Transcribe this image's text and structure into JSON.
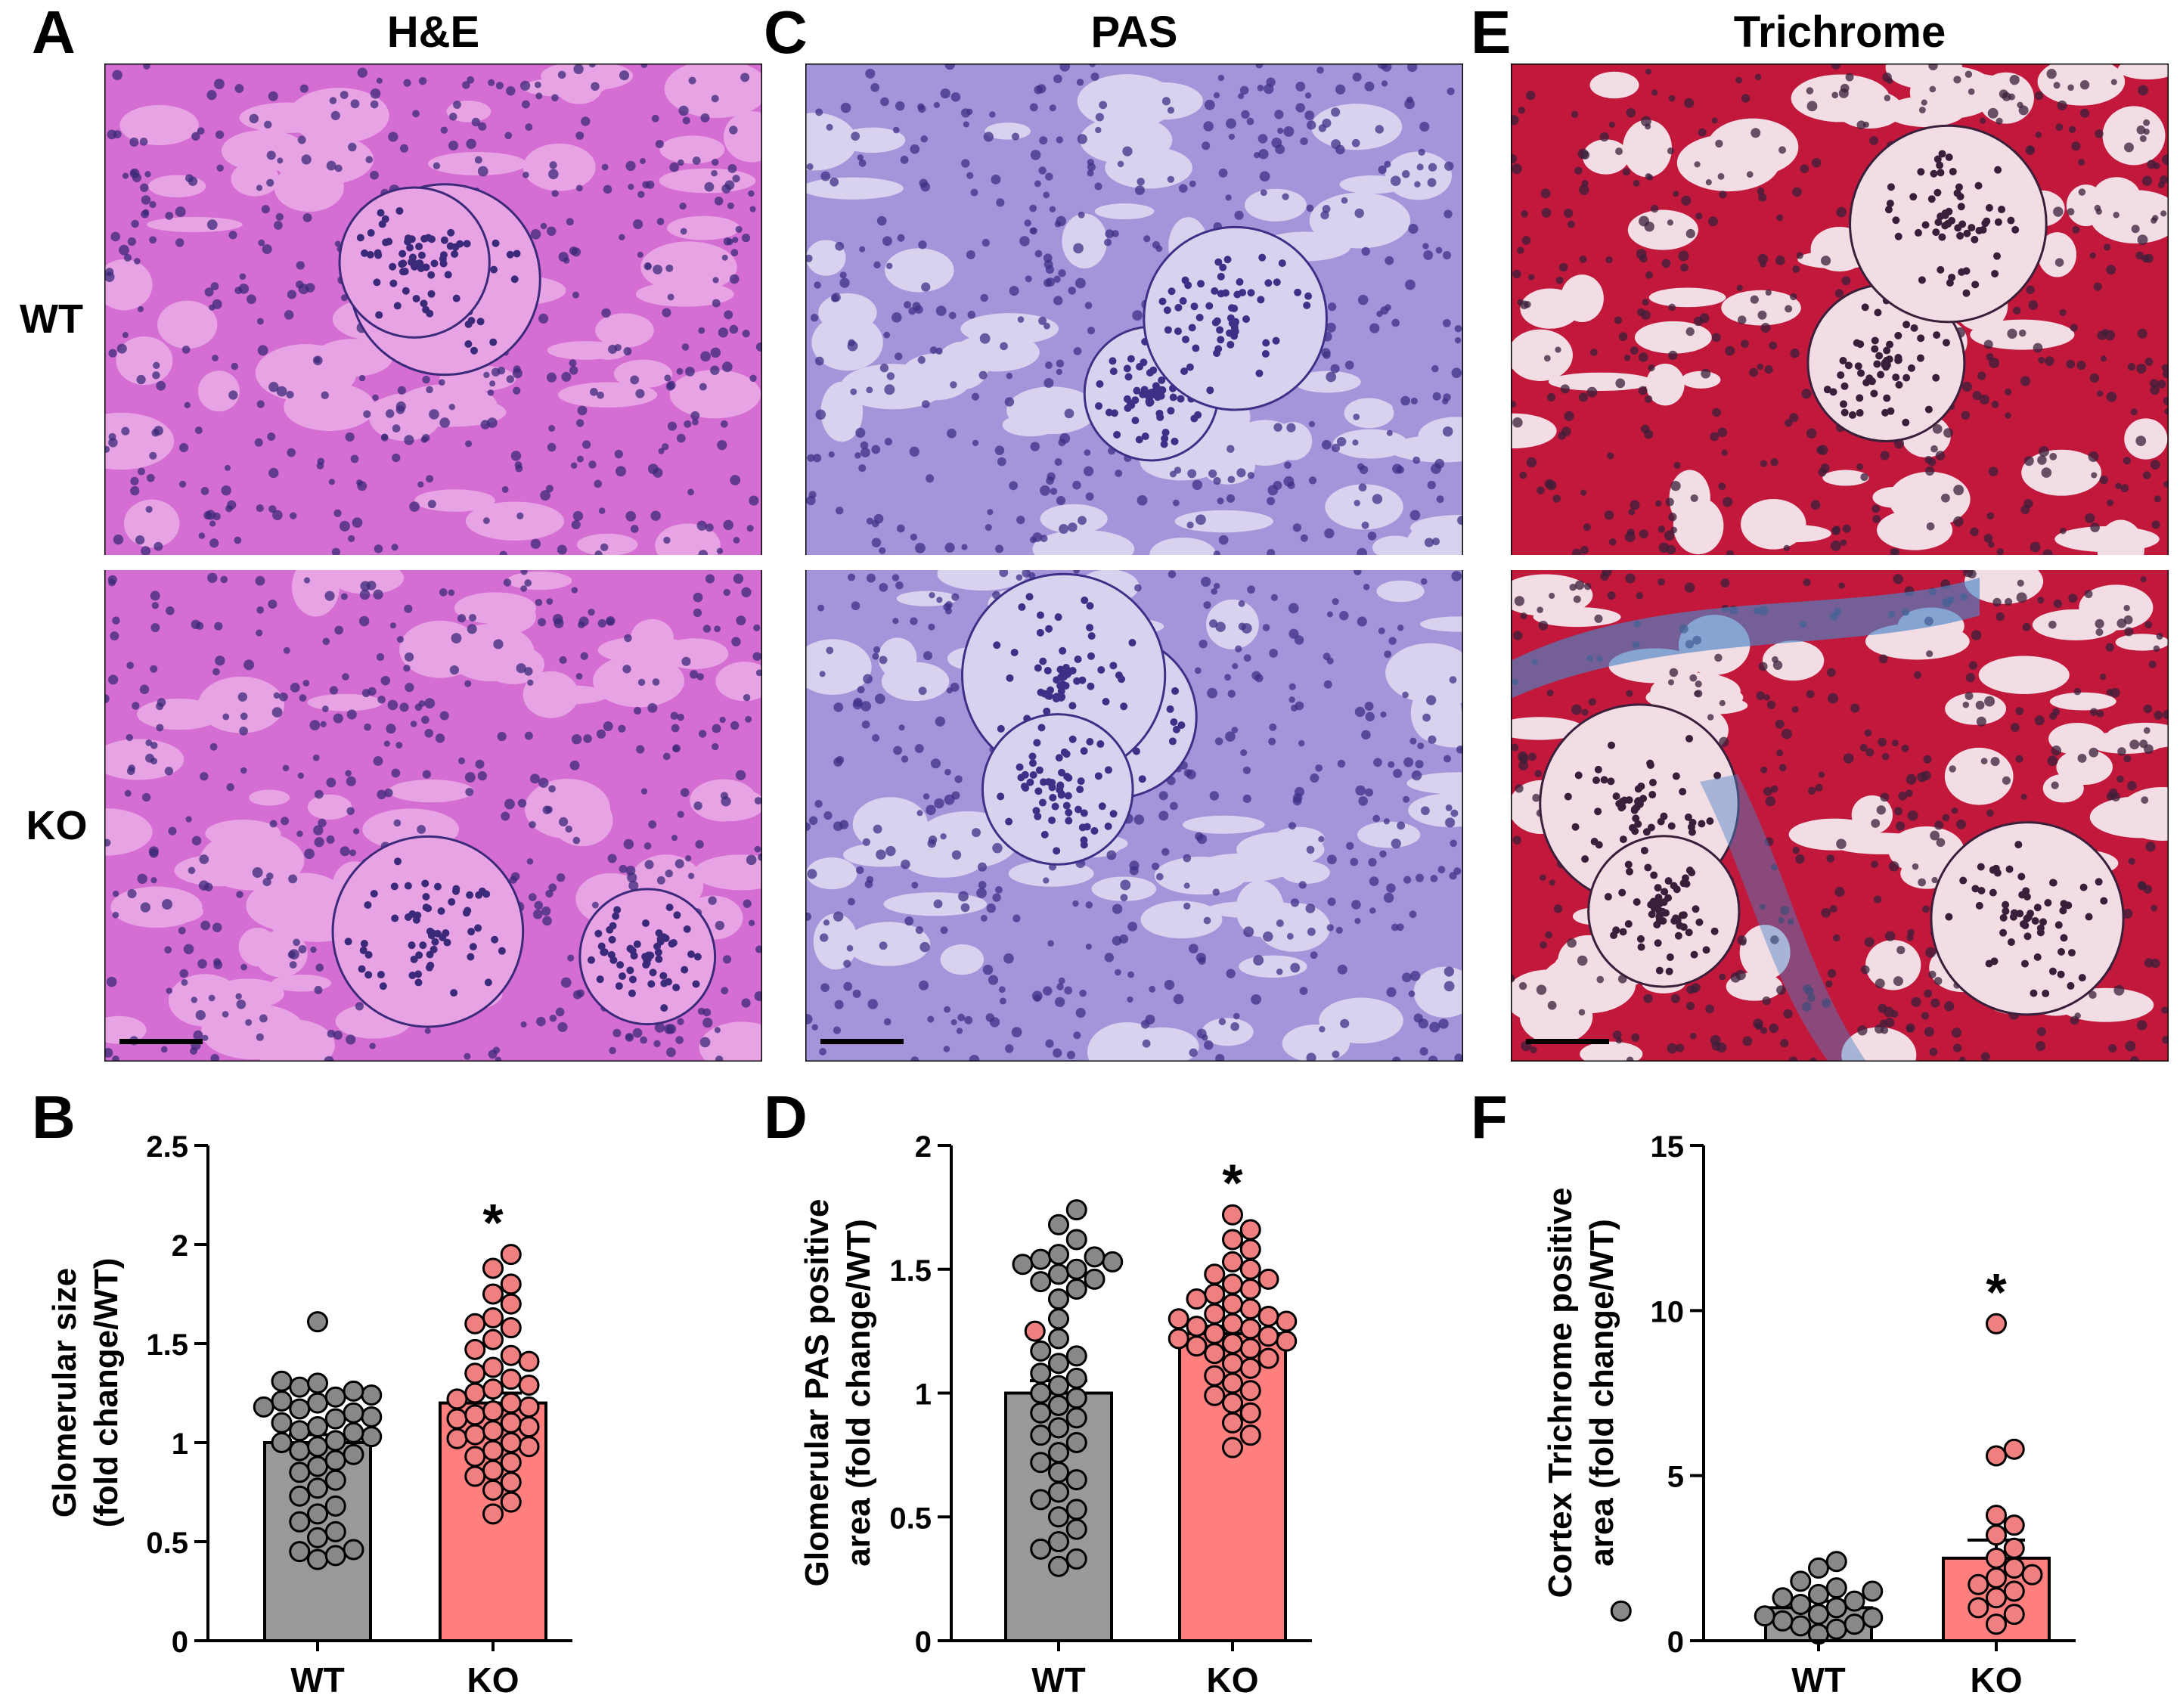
{
  "panels": {
    "A": {
      "letter": "A",
      "title": "H&E"
    },
    "C": {
      "letter": "C",
      "title": "PAS"
    },
    "E": {
      "letter": "E",
      "title": "Trichrome"
    },
    "B": {
      "letter": "B"
    },
    "D": {
      "letter": "D"
    },
    "F": {
      "letter": "F"
    }
  },
  "rows": {
    "top": "WT",
    "bottom": "KO"
  },
  "micrographs": {
    "he": {
      "base": "#d56ed2",
      "tint": "#e8a3e5",
      "nuclei": "#3b2a7a"
    },
    "pas": {
      "base": "#a594d9",
      "tint": "#d9d2ef",
      "nuclei": "#3f3087"
    },
    "trichrome": {
      "base": "#c2183c",
      "tint": "#f3dde4",
      "nuclei": "#3a1f3a",
      "fibrosis": "#4a86c8"
    }
  },
  "colors": {
    "wt_bar": "#999999",
    "ko_bar": "#ff7f7f",
    "wt_dot": "#888888",
    "ko_dot": "#f08080"
  },
  "chart_data": [
    {
      "id": "B",
      "type": "bar",
      "categories": [
        "WT",
        "KO"
      ],
      "ylabel_line1": "Glomerular size",
      "ylabel_line2": "(fold change/WT)",
      "ylim": [
        0,
        2.5
      ],
      "yticks": [
        0,
        0.5,
        1,
        1.5,
        2,
        2.5
      ],
      "ytick_labels": [
        "0",
        "0.5",
        "1",
        "1.5",
        "2",
        "2.5"
      ],
      "means": [
        1.0,
        1.2
      ],
      "sem": [
        0.04,
        0.05
      ],
      "significance": {
        "category": "KO",
        "label": "*"
      },
      "points": [
        [
          0.41,
          0.43,
          0.45,
          0.46,
          0.52,
          0.55,
          0.6,
          0.64,
          0.68,
          0.73,
          0.77,
          0.81,
          0.85,
          0.88,
          0.91,
          0.94,
          0.96,
          0.98,
          1.0,
          1.01,
          1.03,
          1.05,
          1.06,
          1.08,
          1.1,
          1.12,
          1.13,
          1.15,
          1.17,
          1.18,
          1.2,
          1.21,
          1.23,
          1.24,
          1.26,
          1.28,
          1.3,
          1.31,
          1.61
        ],
        [
          0.64,
          0.7,
          0.76,
          0.8,
          0.83,
          0.86,
          0.9,
          0.93,
          0.96,
          0.98,
          1.0,
          1.02,
          1.04,
          1.06,
          1.08,
          1.1,
          1.12,
          1.14,
          1.16,
          1.18,
          1.2,
          1.22,
          1.25,
          1.27,
          1.29,
          1.32,
          1.35,
          1.38,
          1.41,
          1.44,
          1.47,
          1.52,
          1.58,
          1.6,
          1.63,
          1.7,
          1.75,
          1.8,
          1.88,
          1.95
        ]
      ]
    },
    {
      "id": "D",
      "type": "bar",
      "categories": [
        "WT",
        "KO"
      ],
      "ylabel_line1": "Glomerular PAS positive",
      "ylabel_line2": "area (fold change/WT)",
      "ylim": [
        0,
        2
      ],
      "yticks": [
        0,
        0.5,
        1,
        1.5,
        2
      ],
      "ytick_labels": [
        "0",
        "0.5",
        "1",
        "1.5",
        "2"
      ],
      "means": [
        1.0,
        1.24
      ],
      "sem": [
        0.05,
        0.03
      ],
      "significance": {
        "category": "KO",
        "label": "*"
      },
      "points": [
        [
          0.3,
          0.33,
          0.37,
          0.4,
          0.45,
          0.5,
          0.53,
          0.57,
          0.6,
          0.65,
          0.68,
          0.72,
          0.76,
          0.8,
          0.83,
          0.86,
          0.9,
          0.92,
          0.95,
          0.98,
          1.0,
          1.03,
          1.06,
          1.08,
          1.12,
          1.15,
          1.17,
          1.22,
          1.3,
          1.38,
          1.42,
          1.45,
          1.46,
          1.48,
          1.5,
          1.52,
          1.53,
          1.54,
          1.55,
          1.56,
          1.62,
          1.68,
          1.74
        ],
        [
          0.78,
          0.83,
          0.88,
          0.92,
          0.96,
          0.99,
          1.01,
          1.04,
          1.07,
          1.1,
          1.12,
          1.14,
          1.16,
          1.18,
          1.19,
          1.2,
          1.21,
          1.22,
          1.23,
          1.24,
          1.25,
          1.26,
          1.27,
          1.28,
          1.29,
          1.3,
          1.31,
          1.32,
          1.34,
          1.36,
          1.38,
          1.4,
          1.42,
          1.44,
          1.46,
          1.48,
          1.5,
          1.53,
          1.58,
          1.62,
          1.66,
          1.72
        ]
      ]
    },
    {
      "id": "F",
      "type": "bar",
      "categories": [
        "WT",
        "KO"
      ],
      "ylabel_line1": "Cortex Trichrome positive",
      "ylabel_line2": "area (fold change/WT)",
      "ylim": [
        0,
        15
      ],
      "yticks": [
        0,
        5,
        10,
        15
      ],
      "ytick_labels": [
        "0",
        "5",
        "10",
        "15"
      ],
      "means": [
        1.0,
        2.5
      ],
      "sem": [
        0.2,
        0.55
      ],
      "significance": {
        "category": "KO",
        "label": "*"
      },
      "points": [
        [
          0.2,
          0.35,
          0.45,
          0.5,
          0.6,
          0.7,
          0.75,
          0.8,
          0.9,
          1.0,
          1.1,
          1.2,
          1.3,
          1.4,
          1.5,
          1.6,
          1.8,
          2.2,
          2.4
        ],
        [
          0.5,
          0.8,
          1.0,
          1.3,
          1.5,
          1.7,
          1.9,
          2.0,
          2.2,
          2.5,
          2.8,
          3.2,
          3.5,
          3.8,
          5.6,
          5.8,
          9.6
        ]
      ]
    }
  ],
  "xtick_labels": [
    "WT",
    "KO"
  ]
}
